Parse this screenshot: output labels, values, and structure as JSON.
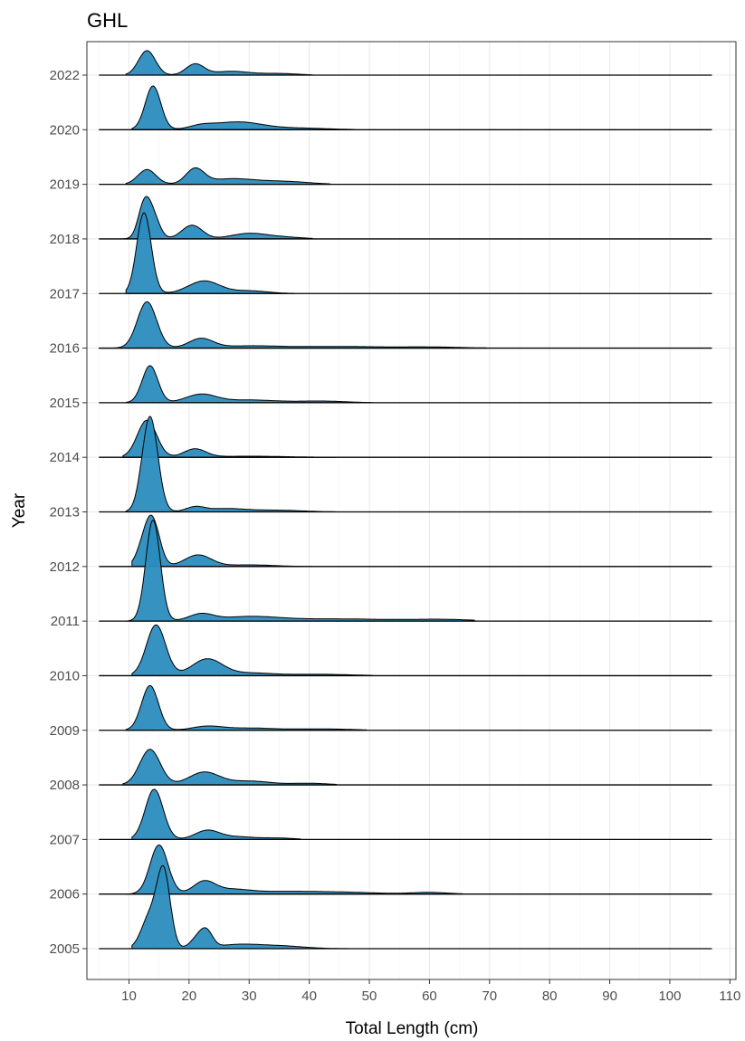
{
  "chart_data": {
    "type": "area",
    "subtype": "ridgeline-density",
    "title": "GHL",
    "xlabel": "Total Length (cm)",
    "ylabel": "Year",
    "xlim": [
      3,
      111
    ],
    "xticks": [
      10,
      20,
      30,
      40,
      50,
      60,
      70,
      80,
      90,
      100,
      110
    ],
    "xtick_labels": [
      "10",
      "20",
      "30",
      "40",
      "50",
      "60",
      "70",
      "80",
      "90",
      "100",
      "110"
    ],
    "baseline_range": [
      5,
      107
    ],
    "fill_color": "#2b8cbe",
    "outline_color": "#000000",
    "grid": true,
    "theme": "bw",
    "years": [
      "2005",
      "2006",
      "2007",
      "2008",
      "2009",
      "2010",
      "2011",
      "2012",
      "2013",
      "2014",
      "2015",
      "2016",
      "2017",
      "2018",
      "2019",
      "2020",
      "2022"
    ],
    "density_units": "relative height, 1.0 = one row spacing",
    "series": [
      {
        "name": "2005",
        "range": [
          10.5,
          49.5
        ],
        "peaks": [
          [
            15.8,
            1.35,
            1.1
          ],
          [
            13.5,
            0.6,
            1.4
          ],
          [
            21.5,
            0.2,
            1.2
          ],
          [
            23,
            0.25,
            1.0
          ],
          [
            28,
            0.07,
            3.5
          ],
          [
            35,
            0.05,
            4
          ]
        ]
      },
      {
        "name": "2006",
        "range": [
          9.5,
          65.5
        ],
        "peaks": [
          [
            15,
            0.9,
            1.5
          ],
          [
            22.5,
            0.22,
            1.8
          ],
          [
            27,
            0.08,
            3
          ],
          [
            35,
            0.04,
            5
          ],
          [
            45,
            0.035,
            6
          ],
          [
            60,
            0.03,
            3
          ]
        ]
      },
      {
        "name": "2007",
        "range": [
          10.5,
          38.5
        ],
        "peaks": [
          [
            14.2,
            0.92,
            1.5
          ],
          [
            23,
            0.16,
            2
          ],
          [
            28,
            0.05,
            3
          ],
          [
            35,
            0.025,
            2.5
          ]
        ]
      },
      {
        "name": "2008",
        "range": [
          9,
          44.5
        ],
        "peaks": [
          [
            13.5,
            0.65,
            1.7
          ],
          [
            22.5,
            0.23,
            2.5
          ],
          [
            30,
            0.07,
            3.5
          ],
          [
            40,
            0.03,
            3
          ]
        ]
      },
      {
        "name": "2009",
        "range": [
          9.5,
          49.5
        ],
        "peaks": [
          [
            13.5,
            0.82,
            1.4
          ],
          [
            23,
            0.07,
            2.5
          ],
          [
            30,
            0.04,
            4
          ],
          [
            42,
            0.025,
            5
          ]
        ]
      },
      {
        "name": "2010",
        "range": [
          10.5,
          50.5
        ],
        "peaks": [
          [
            14.5,
            0.93,
            1.6
          ],
          [
            23,
            0.3,
            2.5
          ],
          [
            30,
            0.05,
            4
          ],
          [
            42,
            0.025,
            5
          ]
        ]
      },
      {
        "name": "2011",
        "range": [
          9.5,
          67.5
        ],
        "peaks": [
          [
            14,
            1.85,
            1.2
          ],
          [
            22,
            0.12,
            2
          ],
          [
            30,
            0.08,
            5
          ],
          [
            45,
            0.04,
            8
          ],
          [
            62,
            0.03,
            5
          ]
        ]
      },
      {
        "name": "2012",
        "range": [
          10.5,
          40.5
        ],
        "peaks": [
          [
            14,
            0.75,
            1.2
          ],
          [
            12.5,
            0.35,
            1.2
          ],
          [
            21.5,
            0.21,
            2.2
          ],
          [
            30,
            0.03,
            4
          ]
        ]
      },
      {
        "name": "2013",
        "range": [
          9.5,
          44.5
        ],
        "peaks": [
          [
            13.5,
            1.75,
            1.3
          ],
          [
            21,
            0.08,
            1.5
          ],
          [
            26,
            0.06,
            3.5
          ],
          [
            35,
            0.03,
            4
          ]
        ]
      },
      {
        "name": "2014",
        "range": [
          9,
          44.5
        ],
        "peaks": [
          [
            13,
            0.68,
            1.6
          ],
          [
            21,
            0.15,
            1.8
          ],
          [
            30,
            0.02,
            6
          ]
        ]
      },
      {
        "name": "2015",
        "range": [
          9.5,
          50.5
        ],
        "peaks": [
          [
            13.5,
            0.68,
            1.3
          ],
          [
            22,
            0.15,
            2.5
          ],
          [
            30,
            0.05,
            4.5
          ],
          [
            42,
            0.03,
            4
          ]
        ]
      },
      {
        "name": "2016",
        "range": [
          5,
          69.5
        ],
        "peaks": [
          [
            13,
            0.85,
            1.6
          ],
          [
            22,
            0.17,
            2
          ],
          [
            30,
            0.04,
            5
          ],
          [
            45,
            0.03,
            7
          ],
          [
            60,
            0.02,
            5
          ]
        ]
      },
      {
        "name": "2017",
        "range": [
          9.5,
          37.5
        ],
        "peaks": [
          [
            12.5,
            1.48,
            1.2
          ],
          [
            22.5,
            0.23,
            2.6
          ],
          [
            30,
            0.05,
            3
          ]
        ]
      },
      {
        "name": "2018",
        "range": [
          8.5,
          40.5
        ],
        "peaks": [
          [
            12.5,
            0.58,
            1.0
          ],
          [
            14,
            0.4,
            1.1
          ],
          [
            20.5,
            0.25,
            1.7
          ],
          [
            30,
            0.1,
            3
          ],
          [
            36,
            0.03,
            3
          ]
        ]
      },
      {
        "name": "2019",
        "range": [
          9.5,
          43.5
        ],
        "peaks": [
          [
            13,
            0.27,
            1.5
          ],
          [
            21,
            0.27,
            1.5
          ],
          [
            27,
            0.1,
            4
          ],
          [
            36,
            0.05,
            4
          ]
        ]
      },
      {
        "name": "2020",
        "range": [
          10.5,
          47.5
        ],
        "peaks": [
          [
            14,
            0.8,
            1.3
          ],
          [
            22,
            0.06,
            2
          ],
          [
            28,
            0.14,
            4
          ],
          [
            38,
            0.03,
            5
          ]
        ]
      },
      {
        "name": "2022",
        "range": [
          9.5,
          40.5
        ],
        "peaks": [
          [
            13,
            0.45,
            1.4
          ],
          [
            21,
            0.2,
            1.5
          ],
          [
            27,
            0.07,
            3
          ],
          [
            35,
            0.03,
            3
          ]
        ]
      }
    ]
  }
}
